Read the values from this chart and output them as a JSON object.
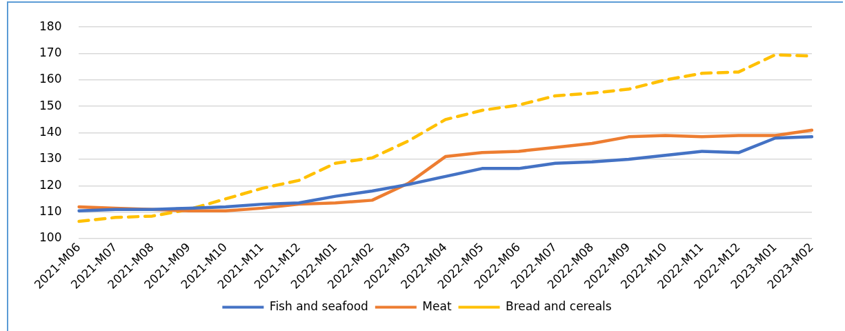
{
  "chart_data": {
    "type": "line",
    "categories": [
      "2021-M06",
      "2021-M07",
      "2021-M08",
      "2021-M09",
      "2021-M10",
      "2021-M11",
      "2021-M12",
      "2022-M01",
      "2022-M02",
      "2022-M03",
      "2022-M04",
      "2022-M05",
      "2022-M06",
      "2022-M07",
      "2022-M08",
      "2022-M09",
      "2022-M10",
      "2022-M11",
      "2022-M12",
      "2023-M01",
      "2023-M02"
    ],
    "series": [
      {
        "name": "Fish and seafood",
        "color": "#4472c4",
        "line_style": "solid",
        "values": [
          110.5,
          111,
          111,
          111.5,
          112,
          113,
          113.5,
          116,
          118,
          120.5,
          123.5,
          126.5,
          126.5,
          128.5,
          129,
          130,
          131.5,
          133,
          132.5,
          138,
          138.5
        ]
      },
      {
        "name": "Meat",
        "color": "#ed7d31",
        "line_style": "solid",
        "values": [
          112,
          111.5,
          111,
          110.5,
          110.5,
          111.5,
          113,
          113.5,
          114.5,
          121,
          131,
          132.5,
          133,
          134.5,
          136,
          138.5,
          139,
          138.5,
          139,
          139,
          141
        ]
      },
      {
        "name": "Bread and cereals",
        "color": "#ffc000",
        "line_style": "dashed",
        "values": [
          106.5,
          108,
          108.5,
          111,
          115,
          119,
          122,
          128.5,
          130.5,
          137,
          145,
          148.5,
          150.5,
          154,
          155,
          156.5,
          160,
          162.5,
          163,
          169.5,
          169
        ]
      }
    ],
    "ylim": [
      100,
      180
    ],
    "yticks": [
      100,
      110,
      120,
      130,
      140,
      150,
      160,
      170,
      180
    ],
    "grid": "y",
    "legend": "bottom",
    "marker": "none"
  }
}
